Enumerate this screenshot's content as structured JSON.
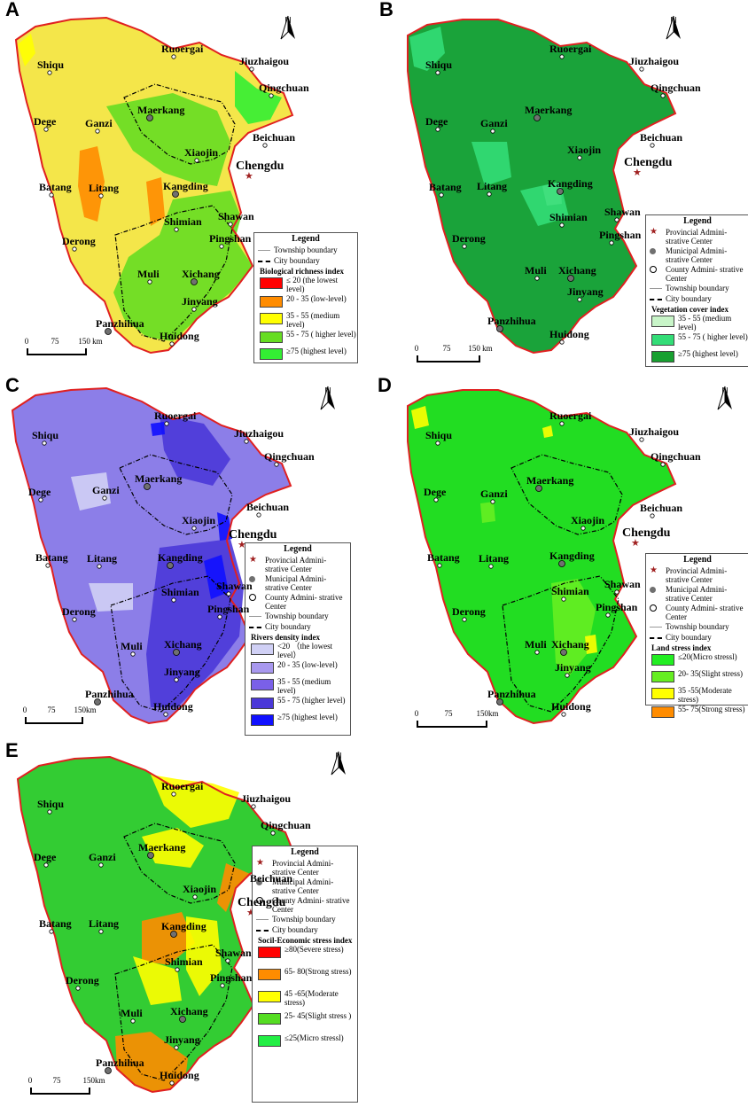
{
  "north_letter": "N",
  "scale": {
    "ticks": [
      "0",
      "75",
      "150 km"
    ]
  },
  "scale_b": {
    "ticks": [
      "0",
      "75",
      "150 km"
    ]
  },
  "scale_c": {
    "ticks": [
      "0",
      "75",
      "150km"
    ]
  },
  "scale_d": {
    "ticks": [
      "0",
      "75",
      "150km"
    ]
  },
  "scale_e": {
    "ticks": [
      "0",
      "75",
      "150km"
    ]
  },
  "colors": {
    "boundary": "#e02020",
    "city_dot": "#707070",
    "capital_star": "#a02020"
  },
  "panels": [
    {
      "letter": "A",
      "base_color": "#f4e64a",
      "legend": {
        "title": "Legend",
        "items": [
          "Township boundary",
          "City boundary"
        ],
        "subtitle": "Biological richness index",
        "classes": [
          {
            "label": "≤ 20 (the lowest level)",
            "color": "#ff0000"
          },
          {
            "label": "20 - 35 (low-level)",
            "color": "#ff8c00"
          },
          {
            "label": "35 - 55 (medium level)",
            "color": "#ffff00"
          },
          {
            "label": "55 - 75 ( higher level)",
            "color": "#66dd22"
          },
          {
            "label": "≥75 (highest level)",
            "color": "#33ee33"
          }
        ]
      }
    },
    {
      "letter": "B",
      "base_color": "#1aa33a",
      "legend": {
        "title": "Legend",
        "items": [
          "Provincial Admini- strative Center",
          "Municipal Admini- strative Center",
          "County Admini- strative Center",
          "Township boundary",
          "City boundary"
        ],
        "subtitle": "Vegetation cover index",
        "classes": [
          {
            "label": "35 - 55 (medium level)",
            "color": "#c8f5c8"
          },
          {
            "label": "55 - 75 ( higher level)",
            "color": "#33dd77"
          },
          {
            "label": "≥75 (highest level)",
            "color": "#18a030"
          }
        ]
      }
    },
    {
      "letter": "C",
      "base_color": "#8c7ee8",
      "legend": {
        "title": "Legend",
        "items": [
          "Provincial Admini- strative Center",
          "Municipal Admini- strative Center",
          "County Admini- strative Center",
          "Township boundary",
          "City boundary"
        ],
        "subtitle": "Rivers density index",
        "classes": [
          {
            "label": "<20 （the lowest level）",
            "color": "#d0d0f5"
          },
          {
            "label": "20 - 35 (low-level)",
            "color": "#a898ee"
          },
          {
            "label": "35 - 55 (medium level)",
            "color": "#7a60e8"
          },
          {
            "label": "55 - 75 (higher level)",
            "color": "#4a38d8"
          },
          {
            "label": "≥75 (highest level)",
            "color": "#1010ff"
          }
        ]
      }
    },
    {
      "letter": "D",
      "base_color": "#22dd22",
      "legend": {
        "title": "Legend",
        "items": [
          "Provincial Admini- strative Center",
          "Municipal Admini- strative Center",
          "County Admini- strative Center",
          "Township boundary",
          "City boundary"
        ],
        "subtitle": "Land stress index",
        "classes": [
          {
            "label": "≤20(Micro stressl)",
            "color": "#22ee22"
          },
          {
            "label": "20- 35(Slight stress)",
            "color": "#66ee22"
          },
          {
            "label": "35 -55(Moderate stress)",
            "color": "#ffff00"
          },
          {
            "label": "55- 75(Strong stress)",
            "color": "#ff8c00"
          }
        ]
      }
    },
    {
      "letter": "E",
      "base_color": "#33cc33",
      "legend": {
        "title": "Legend",
        "items": [
          "Provincial Admini- strative Center",
          "Municipal Admini- strative Center",
          "County Admini- strative Center",
          "Township boundary",
          "City boundary"
        ],
        "subtitle": "Socil-Economic stress index",
        "classes": [
          {
            "label": "≥80(Severe stress)",
            "color": "#ff0000"
          },
          {
            "label": "65- 80(Strong stress)",
            "color": "#ff8c00"
          },
          {
            "label": "45 -65(Moderate stress)",
            "color": "#ffff00"
          },
          {
            "label": "25- 45(Slight stress )",
            "color": "#55dd22"
          },
          {
            "label": "≤25(Micro stressl)",
            "color": "#22ee44"
          }
        ]
      }
    }
  ],
  "cities": [
    {
      "name": "Ruoergai",
      "kind": "county"
    },
    {
      "name": "Jiuzhaigou",
      "kind": "county"
    },
    {
      "name": "Qingchuan",
      "kind": "county"
    },
    {
      "name": "Shiqu",
      "kind": "county"
    },
    {
      "name": "Dege",
      "kind": "county"
    },
    {
      "name": "Ganzi",
      "kind": "county"
    },
    {
      "name": "Maerkang",
      "kind": "municipal"
    },
    {
      "name": "Beichuan",
      "kind": "county"
    },
    {
      "name": "Xiaojin",
      "kind": "county"
    },
    {
      "name": "Chengdu",
      "kind": "provincial"
    },
    {
      "name": "Batang",
      "kind": "county"
    },
    {
      "name": "Litang",
      "kind": "county"
    },
    {
      "name": "Kangding",
      "kind": "municipal"
    },
    {
      "name": "Shawan",
      "kind": "county"
    },
    {
      "name": "Shimian",
      "kind": "county"
    },
    {
      "name": "Pingshan",
      "kind": "county"
    },
    {
      "name": "Derong",
      "kind": "county"
    },
    {
      "name": "Muli",
      "kind": "county"
    },
    {
      "name": "Xichang",
      "kind": "municipal"
    },
    {
      "name": "Jinyang",
      "kind": "county"
    },
    {
      "name": "Panzhihua",
      "kind": "municipal"
    },
    {
      "name": "Huidong",
      "kind": "county"
    }
  ]
}
